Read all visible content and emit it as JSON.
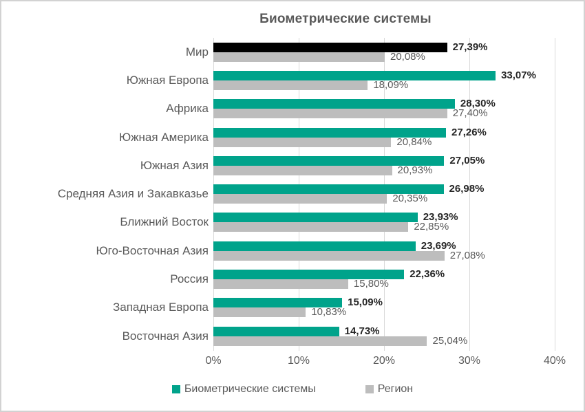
{
  "frame": {
    "border_color": "#d2d2d2",
    "background": "#ffffff"
  },
  "title": "Биометрические системы",
  "chart_data": {
    "type": "bar",
    "orientation": "horizontal",
    "title": "Биометрические системы",
    "xlim": [
      0,
      40
    ],
    "x_ticks": [
      "0%",
      "10%",
      "20%",
      "30%",
      "40%"
    ],
    "grid": "vertical-gridlines-only",
    "legend_position": "bottom",
    "series": [
      {
        "name": "Биометрические системы",
        "color": "#00A38B",
        "value_label_style": "bold"
      },
      {
        "name": "Регион",
        "color": "#BDBDBD",
        "value_label_style": "regular"
      }
    ],
    "rows": [
      {
        "category": "Мир",
        "values": [
          27.39,
          20.08
        ],
        "labels": [
          "27,39%",
          "20,08%"
        ],
        "bar_color": "#000000"
      },
      {
        "category": "Южная Европа",
        "values": [
          33.07,
          18.09
        ],
        "labels": [
          "33,07%",
          "18,09%"
        ]
      },
      {
        "category": "Африка",
        "values": [
          28.3,
          27.4
        ],
        "labels": [
          "28,30%",
          "27,40%"
        ]
      },
      {
        "category": "Южная Америка",
        "values": [
          27.26,
          20.84
        ],
        "labels": [
          "27,26%",
          "20,84%"
        ]
      },
      {
        "category": "Южная Азия",
        "values": [
          27.05,
          20.93
        ],
        "labels": [
          "27,05%",
          "20,93%"
        ]
      },
      {
        "category": "Средняя Азия и Закавказье",
        "values": [
          26.98,
          20.35
        ],
        "labels": [
          "26,98%",
          "20,35%"
        ]
      },
      {
        "category": "Ближний Восток",
        "values": [
          23.93,
          22.85
        ],
        "labels": [
          "23,93%",
          "22,85%"
        ]
      },
      {
        "category": "Юго-Восточная Азия",
        "values": [
          23.69,
          27.08
        ],
        "labels": [
          "23,69%",
          "27,08%"
        ]
      },
      {
        "category": "Россия",
        "values": [
          22.36,
          15.8
        ],
        "labels": [
          "22,36%",
          "15,80%"
        ]
      },
      {
        "category": "Западная Европа",
        "values": [
          15.09,
          10.83
        ],
        "labels": [
          "15,09%",
          "10,83%"
        ]
      },
      {
        "category": "Восточная Азия",
        "values": [
          14.73,
          25.04
        ],
        "labels": [
          "14,73%",
          "25,04%"
        ]
      }
    ],
    "colors": {
      "gridline": "#d9d9d9",
      "title_text": "#595959",
      "category_text": "#595959",
      "axis_text": "#595959",
      "value_bold_text": "#262626",
      "value_gray_text": "#595959"
    }
  }
}
